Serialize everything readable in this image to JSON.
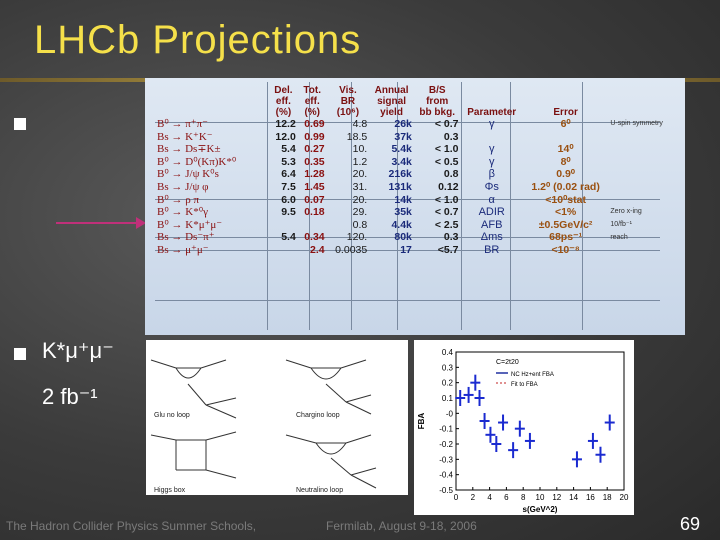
{
  "slide": {
    "title": "LHCb  Projections",
    "bullet2_line1": "K*μ⁺μ⁻",
    "bullet2_line2": "2 fb⁻¹",
    "footer_left": "The Hadron Collider Physics Summer Schools,",
    "footer_mid": "Fermilab, August 9-18, 2006",
    "page": "69"
  },
  "table": {
    "headers": [
      "",
      "Del.\neff.\n(%)",
      "Tot.\neff.\n(%)",
      "Vis.\nBR\n(10⁶)",
      "Annual\nsignal\nyield",
      "B/S\nfrom\nbb bkg.",
      "Parameter",
      "Error"
    ],
    "rows": [
      {
        "proc": "B⁰ → π⁺π⁻",
        "del": "12.2",
        "tot": "0.69",
        "vis": "4.8",
        "ann": "26k",
        "bs": "< 0.7",
        "par": "γ",
        "err": "6⁰",
        "note": "U-spin symmetry"
      },
      {
        "proc": "Bs → K⁺K⁻",
        "del": "12.0",
        "tot": "0.99",
        "vis": "18.5",
        "ann": "37k",
        "bs": "0.3",
        "par": "",
        "err": "",
        "note": ""
      },
      {
        "proc": "Bs → Ds∓K±",
        "del": "5.4",
        "tot": "0.27",
        "vis": "10.",
        "ann": "5.4k",
        "bs": "< 1.0",
        "par": "γ",
        "err": "14⁰",
        "note": ""
      },
      {
        "proc": "B⁰ → D⁰(Kπ)K*⁰",
        "del": "5.3",
        "tot": "0.35",
        "vis": "1.2",
        "ann": "3.4k",
        "bs": "< 0.5",
        "par": "γ",
        "err": "8⁰",
        "note": ""
      },
      {
        "proc": "B⁰ → J/ψ K⁰s",
        "del": "6.4",
        "tot": "1.28",
        "vis": "20.",
        "ann": "216k",
        "bs": "0.8",
        "par": "β",
        "err": "0.9⁰",
        "note": ""
      },
      {
        "proc": "Bs → J/ψ φ",
        "del": "7.5",
        "tot": "1.45",
        "vis": "31.",
        "ann": "131k",
        "bs": "0.12",
        "par": "Φs",
        "err": "1.2⁰ (0.02 rad)",
        "note": ""
      },
      {
        "proc": "B⁰ → ρ π",
        "del": "6.0",
        "tot": "0.07",
        "vis": "20.",
        "ann": "14k",
        "bs": "< 1.0",
        "par": "α",
        "err": "<10⁰stat",
        "note": ""
      },
      {
        "proc": "B⁰ → K*⁰γ",
        "del": "9.5",
        "tot": "0.18",
        "vis": "29.",
        "ann": "35k",
        "bs": "< 0.7",
        "par": "ADIR",
        "err": "<1%",
        "note": "Zero x-ing"
      },
      {
        "proc": "B⁰ → K*μ⁺μ⁻",
        "del": "",
        "tot": "",
        "vis": "0.8",
        "ann": "4.4k",
        "bs": "< 2.5",
        "par": "AFB",
        "err": "±0.5GeV/c²",
        "note": "10/fb⁻¹"
      },
      {
        "proc": "Bs → Ds⁻π⁺",
        "del": "5.4",
        "tot": "0.34",
        "vis": "120.",
        "ann": "80k",
        "bs": "0.3",
        "par": "Δms",
        "err": "68ps⁻¹",
        "note": "reach"
      },
      {
        "proc": "Bs → μ⁺μ⁻",
        "del": "",
        "tot": "2.4",
        "vis": "0.0035",
        "ann": "17",
        "bs": "<5.7",
        "par": "BR",
        "err": "<10⁻⁸",
        "note": ""
      }
    ]
  },
  "diagram": {
    "labels": [
      "Glu no loop",
      "Chargino loop",
      "Higgs box",
      "Neutralino loop"
    ]
  },
  "chart_data": {
    "type": "scatter",
    "xlabel": "s(GeV^2)",
    "ylabel": "FBA",
    "xlim": [
      0,
      20
    ],
    "ylim": [
      -0.5,
      0.4
    ],
    "xticks": [
      "0",
      "2",
      "4",
      "6",
      "8",
      "10",
      "12",
      "14",
      "16",
      "18",
      "20"
    ],
    "yticks": [
      "0.4",
      "0.3",
      "0.2",
      "0.1",
      "-0",
      "-0.1",
      "-0.2",
      "-0.3",
      "-0.4",
      "-0.5"
    ],
    "legend_title": "C=2t20",
    "legend": [
      "NC Hz+ent FBA",
      "Fit to FBA"
    ],
    "points": [
      {
        "x": 0.5,
        "y": 0.1
      },
      {
        "x": 1.5,
        "y": 0.12
      },
      {
        "x": 2.3,
        "y": 0.2
      },
      {
        "x": 2.8,
        "y": 0.1
      },
      {
        "x": 3.4,
        "y": -0.05
      },
      {
        "x": 4.1,
        "y": -0.14
      },
      {
        "x": 4.8,
        "y": -0.2
      },
      {
        "x": 5.6,
        "y": -0.06
      },
      {
        "x": 6.8,
        "y": -0.24
      },
      {
        "x": 7.6,
        "y": -0.1
      },
      {
        "x": 8.8,
        "y": -0.18
      },
      {
        "x": 14.4,
        "y": -0.3
      },
      {
        "x": 16.3,
        "y": -0.18
      },
      {
        "x": 17.2,
        "y": -0.27
      },
      {
        "x": 18.3,
        "y": -0.06
      }
    ]
  },
  "colors": {
    "title": "#f5e04a",
    "arrow": "#c0307a"
  }
}
